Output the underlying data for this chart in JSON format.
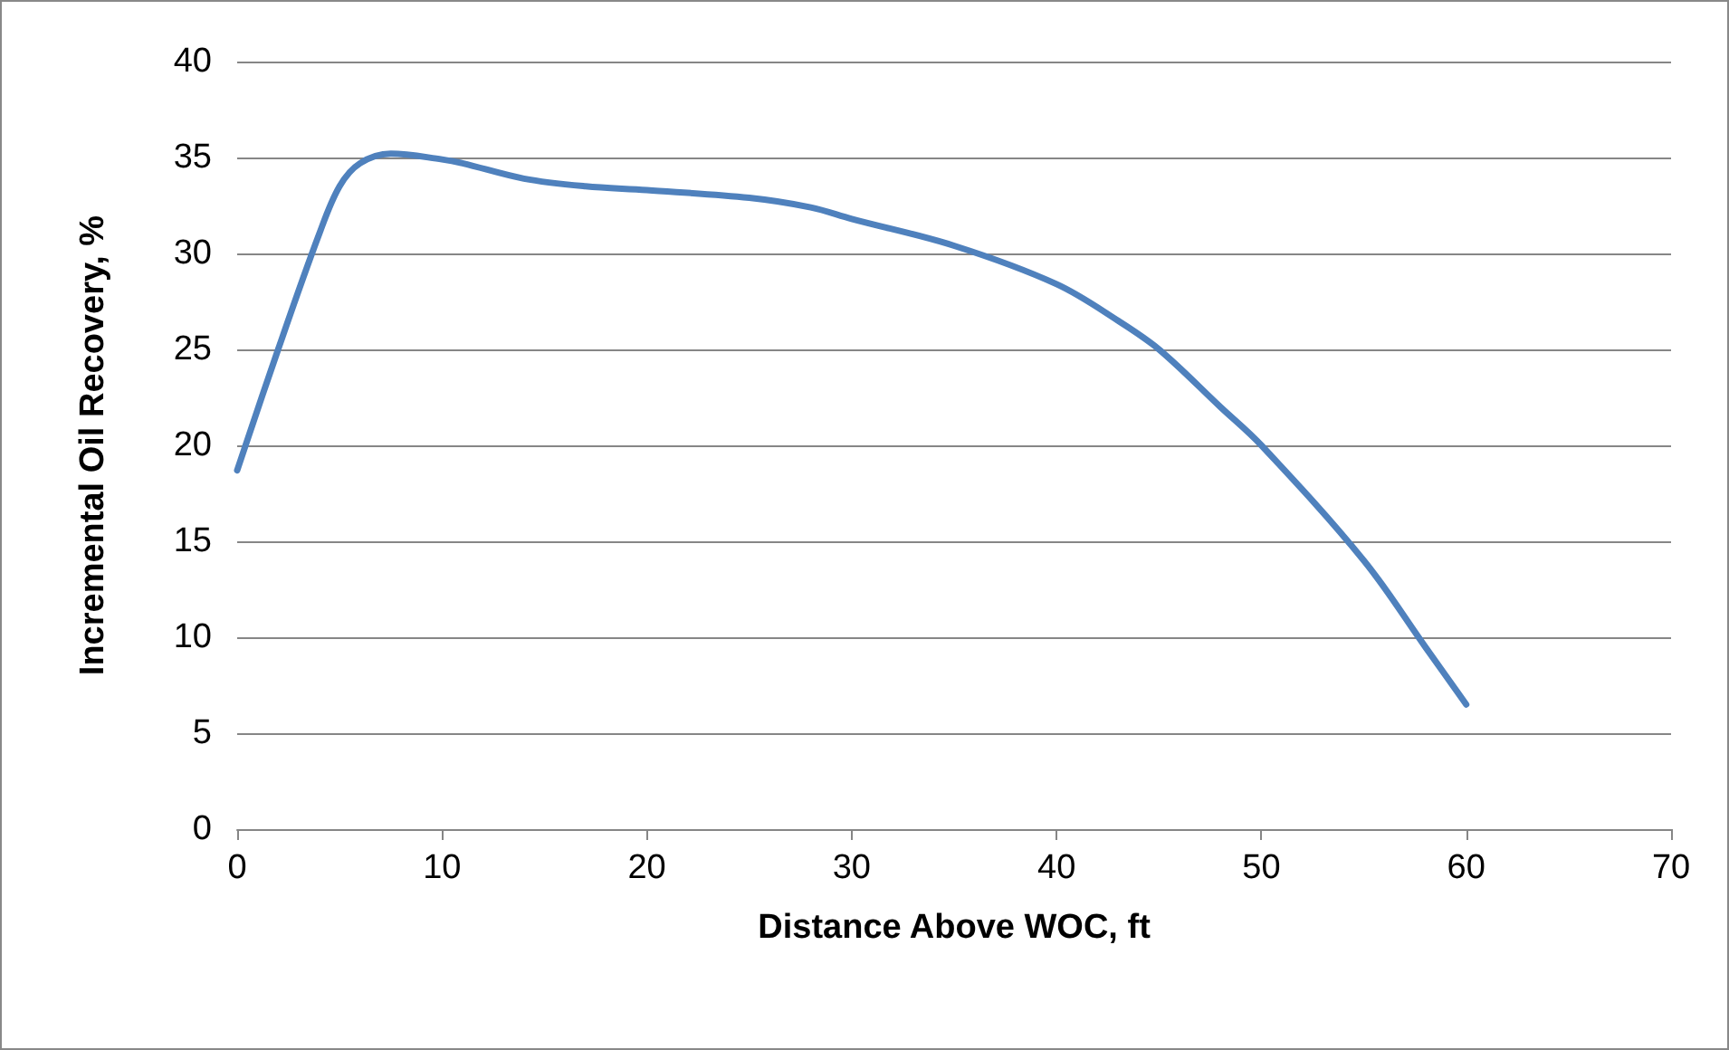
{
  "chart_data": {
    "type": "line",
    "xlabel": "Distance Above WOC, ft",
    "ylabel": "Incremental Oil Recovery, %",
    "series": [
      {
        "color": "#4f81bd",
        "x": [
          0,
          2,
          4,
          5,
          6,
          7.5,
          10,
          11,
          14,
          17,
          20,
          25,
          28,
          30,
          35,
          40,
          43,
          45,
          48,
          50,
          55,
          58,
          60
        ],
        "values": [
          18.7,
          25,
          31,
          33.5,
          34.7,
          35.2,
          34.9,
          34.7,
          33.9,
          33.5,
          33.3,
          32.9,
          32.4,
          31.8,
          30.4,
          28.4,
          26.5,
          25,
          22,
          20,
          14,
          9.5,
          6.5
        ]
      }
    ],
    "xlim": [
      0,
      70
    ],
    "xticks": [
      0,
      10,
      20,
      30,
      40,
      50,
      60,
      70
    ],
    "ylim": [
      0,
      40
    ],
    "yticks": [
      0,
      5,
      10,
      15,
      20,
      25,
      30,
      35,
      40
    ],
    "grid": "y",
    "marker": "none",
    "line_style": "solid"
  }
}
